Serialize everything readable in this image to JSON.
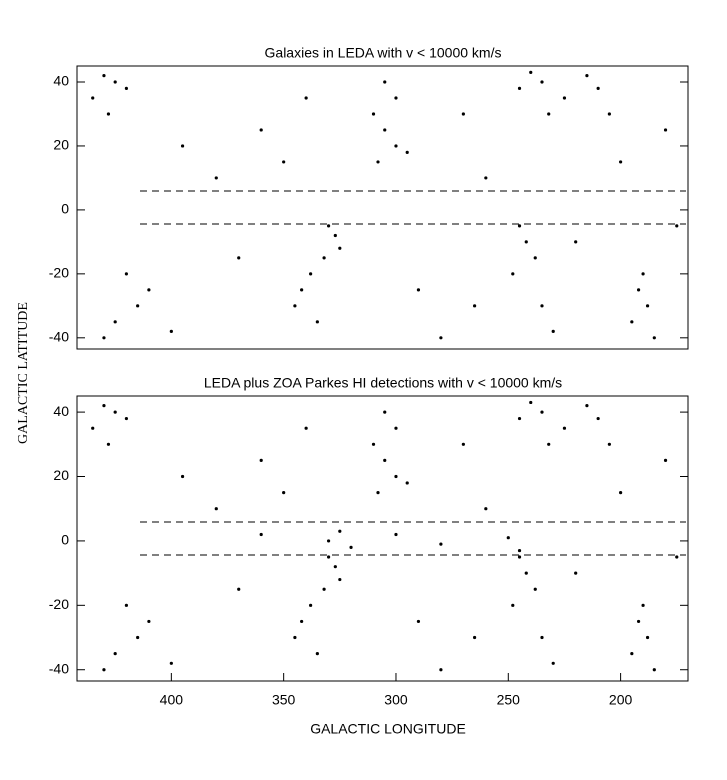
{
  "chart_data": [
    {
      "type": "scatter",
      "title": "Galaxies in LEDA with v < 10000 km/s",
      "ylabel": "GALACTIC  LATITUDE",
      "color": "#000000",
      "xlim": [
        442,
        170
      ],
      "ylim": [
        -43.5,
        45
      ],
      "yticks": [
        -40,
        -20,
        0,
        20,
        40
      ],
      "x": [
        430,
        425,
        420,
        435,
        428,
        305,
        300,
        310,
        305,
        300,
        295,
        308,
        240,
        235,
        245,
        225,
        232,
        215,
        210,
        205,
        330,
        327,
        325,
        332,
        338,
        342,
        345,
        335,
        245,
        242,
        238,
        248,
        235,
        230,
        190,
        192,
        188,
        195,
        185,
        420,
        410,
        415,
        425,
        430,
        400,
        380,
        360,
        350,
        270,
        260,
        200,
        180,
        370,
        290,
        280,
        220,
        175,
        395,
        340,
        265
      ],
      "y": [
        42,
        40,
        38,
        35,
        30,
        40,
        35,
        30,
        25,
        20,
        18,
        15,
        43,
        40,
        38,
        35,
        30,
        42,
        38,
        30,
        -5,
        -8,
        -12,
        -15,
        -20,
        -25,
        -30,
        -35,
        -5,
        -10,
        -15,
        -20,
        -30,
        -38,
        -20,
        -25,
        -30,
        -35,
        -40,
        -20,
        -25,
        -30,
        -35,
        -40,
        -38,
        10,
        25,
        15,
        30,
        10,
        15,
        25,
        -15,
        -25,
        -40,
        -10,
        -5,
        20,
        35,
        -30
      ]
    },
    {
      "type": "scatter",
      "title": "LEDA plus ZOA Parkes HI detections with v < 10000 km/s",
      "xlabel": "GALACTIC LONGITUDE",
      "color": "#000000",
      "xlim": [
        442,
        170
      ],
      "ylim": [
        -43.5,
        45
      ],
      "xticks": [
        400,
        350,
        300,
        250,
        200
      ],
      "yticks": [
        -40,
        -20,
        0,
        20,
        40
      ],
      "x": [
        430,
        425,
        420,
        435,
        428,
        305,
        300,
        310,
        305,
        300,
        295,
        308,
        240,
        235,
        245,
        225,
        232,
        215,
        210,
        205,
        330,
        327,
        325,
        332,
        338,
        342,
        345,
        335,
        245,
        242,
        238,
        248,
        235,
        230,
        190,
        192,
        188,
        195,
        185,
        420,
        410,
        415,
        425,
        430,
        400,
        380,
        360,
        350,
        270,
        260,
        200,
        180,
        370,
        290,
        280,
        220,
        175,
        395,
        340,
        265,
        330,
        325,
        320,
        300,
        250,
        245,
        280,
        360
      ],
      "y": [
        42,
        40,
        38,
        35,
        30,
        40,
        35,
        30,
        25,
        20,
        18,
        15,
        43,
        40,
        38,
        35,
        30,
        42,
        38,
        30,
        -5,
        -8,
        -12,
        -15,
        -20,
        -25,
        -30,
        -35,
        -5,
        -10,
        -15,
        -20,
        -30,
        -38,
        -20,
        -25,
        -30,
        -35,
        -40,
        -20,
        -25,
        -30,
        -35,
        -40,
        -38,
        10,
        25,
        15,
        30,
        10,
        15,
        25,
        -15,
        -25,
        -40,
        -10,
        -5,
        20,
        35,
        -30,
        0,
        3,
        -2,
        2,
        1,
        -3,
        -1,
        2
      ]
    }
  ]
}
